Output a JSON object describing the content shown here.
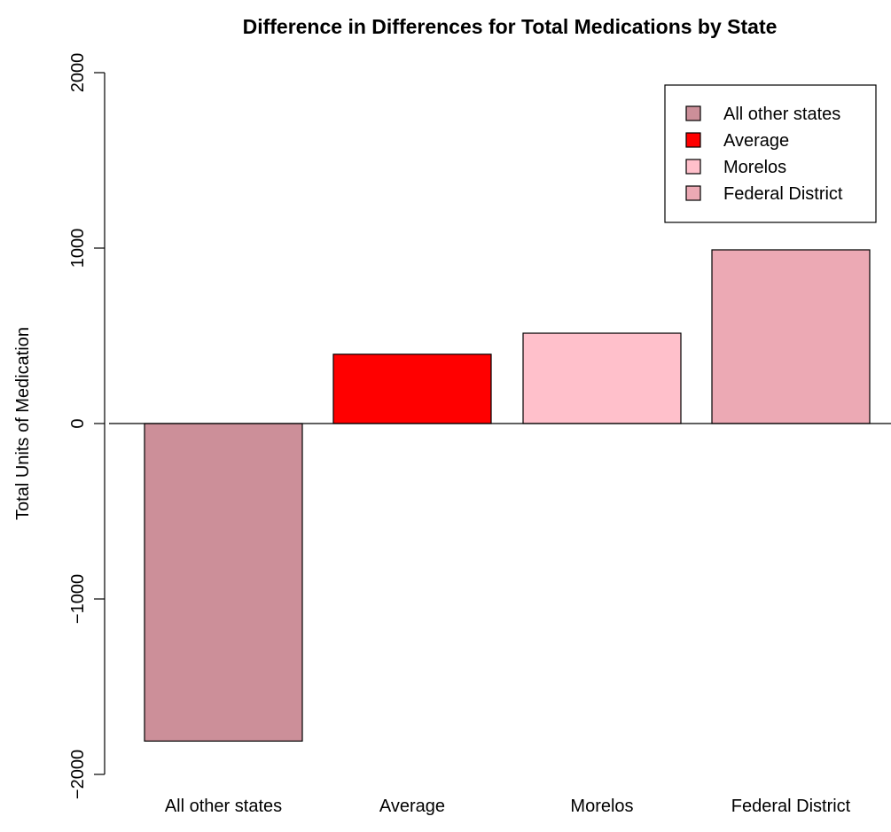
{
  "chart_data": {
    "type": "bar",
    "title": "Difference in Differences for Total Medications by State",
    "xlabel": "",
    "ylabel": "Total Units of Medication",
    "categories": [
      "All other states",
      "Average",
      "Morelos",
      "Federal District"
    ],
    "values": [
      -1810,
      395,
      515,
      990
    ],
    "colors": [
      "#CC8F99",
      "#FF0000",
      "#FFC0CB",
      "#ECA9B4"
    ],
    "ylim": [
      -2000,
      2000
    ],
    "yticks": [
      -2000,
      -1000,
      0,
      1000,
      2000
    ],
    "ytick_labels": [
      "−2000",
      "−1000",
      "0",
      "1000",
      "2000"
    ],
    "zero_line": true,
    "grid": false,
    "legend": {
      "position": "top-right",
      "entries": [
        "All other states",
        "Average",
        "Morelos",
        "Federal District"
      ]
    }
  }
}
